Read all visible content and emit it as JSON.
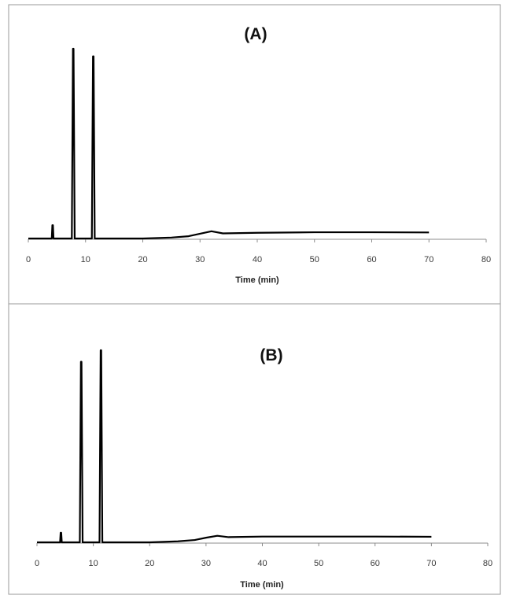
{
  "figure": {
    "frame_color": "#9a9a9a",
    "background": "#ffffff",
    "trace_color": "#000000",
    "axis_color": "#8c8c8c"
  },
  "chart_data": [
    {
      "type": "line",
      "title": "(A)",
      "xlabel": "Time (min)",
      "ylabel": "",
      "xlim": [
        0,
        80
      ],
      "x_ticks": [
        0,
        10,
        20,
        30,
        40,
        50,
        60,
        70,
        80
      ],
      "ylim": [
        0,
        105
      ],
      "grid": false,
      "legend": "none",
      "series": [
        {
          "x": [
            0,
            2,
            4.1,
            4.2,
            4.3,
            4.4,
            6,
            7.6,
            7.8,
            7.9,
            8.1,
            8.3,
            9.5,
            11.1,
            11.3,
            11.4,
            11.6,
            11.8,
            15,
            20,
            25,
            28,
            30,
            32,
            34,
            40,
            50,
            60,
            70
          ],
          "y": [
            0,
            0,
            0,
            7,
            7,
            0,
            0,
            0,
            100,
            100,
            0,
            0,
            0,
            0,
            96,
            96,
            0,
            0,
            0,
            0,
            0.5,
            1.2,
            2.5,
            3.8,
            2.7,
            3.0,
            3.3,
            3.3,
            3.2
          ]
        }
      ]
    },
    {
      "type": "line",
      "title": "(B)",
      "xlabel": "Time (min)",
      "ylabel": "",
      "xlim": [
        0,
        80
      ],
      "x_ticks": [
        0,
        10,
        20,
        30,
        40,
        50,
        60,
        70,
        80
      ],
      "ylim": [
        0,
        105
      ],
      "grid": false,
      "legend": "none",
      "series": [
        {
          "x": [
            0,
            2,
            4.1,
            4.2,
            4.3,
            4.4,
            6,
            7.6,
            7.8,
            7.9,
            8.1,
            8.3,
            9.5,
            11.1,
            11.3,
            11.4,
            11.6,
            11.8,
            15,
            20,
            25,
            28,
            30,
            32,
            34,
            40,
            50,
            60,
            70
          ],
          "y": [
            0,
            0,
            0,
            5,
            5,
            0,
            0,
            0,
            94,
            94,
            0,
            0,
            0,
            0,
            100,
            100,
            0,
            0,
            0,
            0,
            0.5,
            1.2,
            2.4,
            3.4,
            2.7,
            3.0,
            3.0,
            3.0,
            2.9
          ]
        }
      ]
    }
  ]
}
